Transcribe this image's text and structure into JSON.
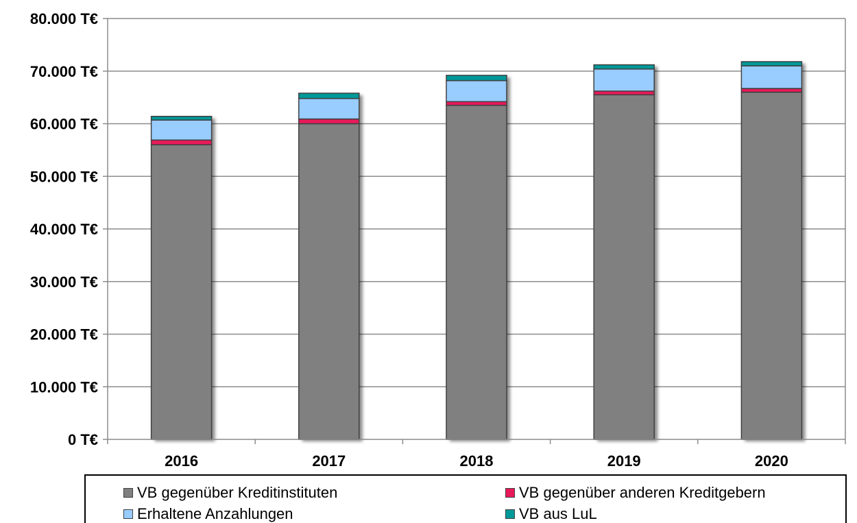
{
  "chart_data": {
    "type": "bar",
    "stacked": true,
    "categories": [
      "2016",
      "2017",
      "2018",
      "2019",
      "2020"
    ],
    "series": [
      {
        "name": "VB gegenüber Kreditinstituten",
        "color": "#808080",
        "values": [
          56000,
          60000,
          63500,
          65500,
          66000
        ]
      },
      {
        "name": "VB gegenüber anderen Kreditgebern",
        "color": "#e8195a",
        "values": [
          900,
          900,
          700,
          700,
          700
        ]
      },
      {
        "name": "Erhaltene Anzahlungen",
        "color": "#99ccff",
        "values": [
          3800,
          3900,
          4000,
          4200,
          4300
        ]
      },
      {
        "name": "VB aus LuL",
        "color": "#009999",
        "values": [
          700,
          1000,
          1000,
          800,
          800
        ]
      }
    ],
    "ylim": [
      0,
      80000
    ],
    "yticks": [
      "0 T€",
      "10.000 T€",
      "20.000 T€",
      "30.000 T€",
      "40.000 T€",
      "50.000 T€",
      "60.000 T€",
      "70.000 T€",
      "80.000 T€"
    ],
    "ytick_values": [
      0,
      10000,
      20000,
      30000,
      40000,
      50000,
      60000,
      70000,
      80000
    ],
    "grid": true,
    "legend_position": "bottom",
    "title": "",
    "xlabel": "",
    "ylabel": ""
  }
}
